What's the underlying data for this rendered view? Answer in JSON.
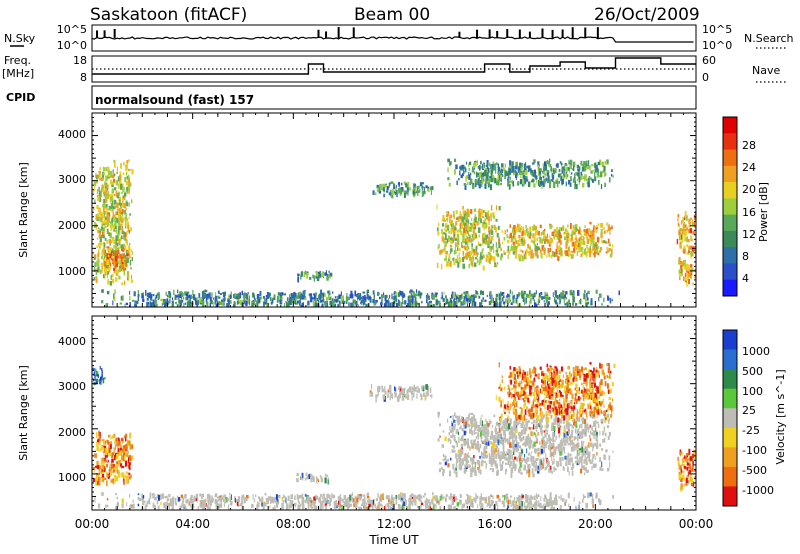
{
  "header": {
    "station": "Saskatoon (fitACF)",
    "beam": "Beam 00",
    "date": "26/Oct/2009"
  },
  "top_panels": {
    "nsky_label": "N.Sky",
    "nsky_ticks": [
      "10^5",
      "10^0"
    ],
    "nsearch_label": "N.Search",
    "nsearch_ticks": [
      "10^5",
      "10^0"
    ],
    "freq_label_1": "Freq.",
    "freq_label_2": "[MHz]",
    "freq_ticks": [
      "18",
      "8"
    ],
    "nave_label": "Nave",
    "nave_ticks": [
      "60",
      "0"
    ],
    "cpid_label": "CPID",
    "cpid_text": "normalsound (fast) 157"
  },
  "colors": {
    "power_scale": [
      "#1a1aff",
      "#2a4fc8",
      "#2e6fa8",
      "#3c8a5a",
      "#5aa85a",
      "#9ccf3a",
      "#e8d020",
      "#f0a020",
      "#ef6f10",
      "#e83010",
      "#e00000"
    ],
    "velocity_scale": [
      "#1a3fcf",
      "#2a6fd0",
      "#2e8a4a",
      "#5ac83a",
      "#bdbdb5",
      "#f0d020",
      "#f0a020",
      "#ef6f10",
      "#e01010"
    ],
    "ground_scatter": "#bdbdb5"
  },
  "chart_data": [
    {
      "type": "heatmap",
      "panel": "power",
      "ylabel": "Slant Range [km]",
      "y_ticks": [
        "4000",
        "3000",
        "2000",
        "1000"
      ],
      "ylim": [
        200,
        4500
      ],
      "xlim_hours": [
        0,
        24
      ],
      "colorbar_label": "Power [dB]",
      "colorbar_ticks": [
        "28",
        "24",
        "20",
        "16",
        "12",
        "8",
        "4"
      ],
      "colorbar_range_db": [
        0,
        32
      ],
      "echo_regions": [
        {
          "t": [
            0.0,
            1.6
          ],
          "range_km": [
            700,
            3500
          ],
          "level": 18
        },
        {
          "t": [
            0.4,
            1.4
          ],
          "range_km": [
            1000,
            1600
          ],
          "level": 24
        },
        {
          "t": [
            0.0,
            21.0
          ],
          "range_km": [
            250,
            600
          ],
          "level": 9
        },
        {
          "t": [
            8.0,
            9.6
          ],
          "range_km": [
            850,
            1050
          ],
          "level": 10
        },
        {
          "t": [
            11.0,
            13.6
          ],
          "range_km": [
            2700,
            3000
          ],
          "level": 11
        },
        {
          "t": [
            13.6,
            16.2
          ],
          "range_km": [
            1100,
            2500
          ],
          "level": 18
        },
        {
          "t": [
            16.0,
            20.8
          ],
          "range_km": [
            1300,
            2100
          ],
          "level": 20
        },
        {
          "t": [
            14.0,
            20.8
          ],
          "range_km": [
            2900,
            3500
          ],
          "level": 11
        },
        {
          "t": [
            23.2,
            24.0
          ],
          "range_km": [
            700,
            2400
          ],
          "level": 22
        }
      ]
    },
    {
      "type": "heatmap",
      "panel": "velocity",
      "ylabel": "Slant Range [km]",
      "y_ticks": [
        "4000",
        "3000",
        "2000",
        "1000"
      ],
      "ylim": [
        200,
        4500
      ],
      "xlim_hours": [
        0,
        24
      ],
      "colorbar_label": "Velocity [m s^-1]",
      "colorbar_ticks": [
        "1000",
        "500",
        "100",
        "25",
        "-25",
        "-100",
        "-500",
        "-1000"
      ],
      "echo_regions": [
        {
          "t": [
            0.0,
            1.6
          ],
          "range_km": [
            800,
            2000
          ],
          "velocity": -300
        },
        {
          "t": [
            0.0,
            0.5
          ],
          "range_km": [
            3000,
            3400
          ],
          "velocity": 300
        },
        {
          "t": [
            0.0,
            21.0
          ],
          "range_km": [
            250,
            600
          ],
          "velocity": 0
        },
        {
          "t": [
            8.0,
            9.6
          ],
          "range_km": [
            850,
            1050
          ],
          "velocity": 0
        },
        {
          "t": [
            11.0,
            13.6
          ],
          "range_km": [
            2700,
            3000
          ],
          "velocity": 0
        },
        {
          "t": [
            13.6,
            20.8
          ],
          "range_km": [
            1000,
            2400
          ],
          "velocity": 0
        },
        {
          "t": [
            16.0,
            20.8
          ],
          "range_km": [
            2200,
            3500
          ],
          "velocity": -300
        },
        {
          "t": [
            23.2,
            24.0
          ],
          "range_km": [
            700,
            1600
          ],
          "velocity": -400
        }
      ]
    }
  ],
  "x_axis": {
    "tick_labels": [
      "00:00",
      "04:00",
      "08:00",
      "12:00",
      "16:00",
      "20:00",
      "00:00"
    ],
    "label": "Time UT"
  }
}
